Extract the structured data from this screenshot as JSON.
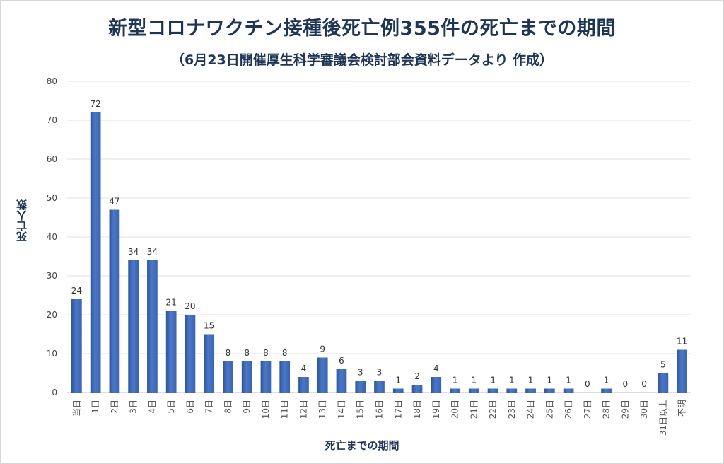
{
  "chart_data": {
    "type": "bar",
    "title": "新型コロナワクチン接種後死亡例355件の死亡までの期間",
    "subtitle": "（6月23日開催厚生科学審議会検討部会資料データより 作成）",
    "xlabel": "死亡までの期間",
    "ylabel": "死亡人数",
    "ylim": [
      0,
      80
    ],
    "yticks": [
      0,
      10,
      20,
      30,
      40,
      50,
      60,
      70,
      80
    ],
    "categories": [
      "当日",
      "1日",
      "2日",
      "3日",
      "4日",
      "5日",
      "6日",
      "7日",
      "8日",
      "9日",
      "10日",
      "11日",
      "12日",
      "13日",
      "14日",
      "15日",
      "16日",
      "17日",
      "18日",
      "19日",
      "20日",
      "21日",
      "22日",
      "23日",
      "24日",
      "25日",
      "26日",
      "27日",
      "28日",
      "29日",
      "30日",
      "31日以上",
      "不明"
    ],
    "values": [
      24,
      72,
      47,
      34,
      34,
      21,
      20,
      15,
      8,
      8,
      8,
      8,
      4,
      9,
      6,
      3,
      3,
      1,
      2,
      4,
      1,
      1,
      1,
      1,
      1,
      1,
      1,
      0,
      1,
      0,
      0,
      5,
      11
    ],
    "bar_color": "#4472c4",
    "grid": true
  }
}
